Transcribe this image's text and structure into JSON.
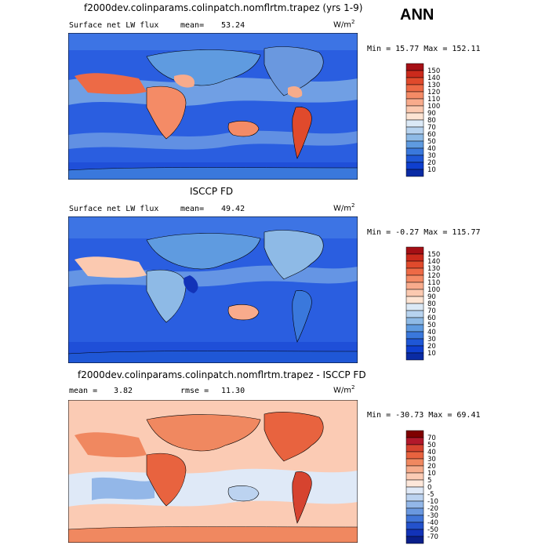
{
  "season": "ANN",
  "panels": [
    {
      "title": "f2000dev.colinparams.colinpatch.nomflrtm.trapez (yrs 1-9)",
      "variable": "Surface net LW flux",
      "stat1_label": "mean=",
      "stat1_value": "53.24",
      "stat2_label": "",
      "stat2_value": "",
      "units": "W/m",
      "units_exp": "2",
      "minmax": "Min =  15.77 Max = 152.11",
      "colorbar_levels": [
        "150",
        "140",
        "130",
        "120",
        "110",
        "100",
        "90",
        "80",
        "70",
        "60",
        "50",
        "40",
        "30",
        "20",
        "10"
      ],
      "colorbar_colors": [
        "#a50f15",
        "#cb2a1c",
        "#e04a2c",
        "#ed6a46",
        "#f48b66",
        "#f8ab8c",
        "#fbc9b0",
        "#fde4d3",
        "#dbe9f6",
        "#b7d3ef",
        "#8ebae6",
        "#5f9be0",
        "#3a78dc",
        "#1f57d6",
        "#0f3fcf",
        "#0a2ba4"
      ]
    },
    {
      "title": "ISCCP FD",
      "variable": "Surface net LW flux",
      "stat1_label": "mean=",
      "stat1_value": "49.42",
      "stat2_label": "",
      "stat2_value": "",
      "units": "W/m",
      "units_exp": "2",
      "minmax": "Min =  -0.27 Max = 115.77",
      "colorbar_levels": [
        "150",
        "140",
        "130",
        "120",
        "110",
        "100",
        "90",
        "80",
        "70",
        "60",
        "50",
        "40",
        "30",
        "20",
        "10"
      ],
      "colorbar_colors": [
        "#a50f15",
        "#cb2a1c",
        "#e04a2c",
        "#ed6a46",
        "#f48b66",
        "#f8ab8c",
        "#fbc9b0",
        "#fde4d3",
        "#dbe9f6",
        "#b7d3ef",
        "#8ebae6",
        "#5f9be0",
        "#3a78dc",
        "#1f57d6",
        "#0f3fcf",
        "#0a2ba4"
      ]
    },
    {
      "title": "f2000dev.colinparams.colinpatch.nomflrtm.trapez - ISCCP FD",
      "variable": "",
      "stat1_label": "mean =",
      "stat1_value": "3.82",
      "stat2_label": "rmse =",
      "stat2_value": "11.30",
      "units": "W/m",
      "units_exp": "2",
      "minmax": "Min = -30.73 Max =  69.41",
      "colorbar_levels": [
        "70",
        "50",
        "40",
        "30",
        "20",
        "10",
        "5",
        "0",
        "-5",
        "-10",
        "-20",
        "-30",
        "-40",
        "-50",
        "-70"
      ],
      "colorbar_colors": [
        "#7f0000",
        "#b2182b",
        "#d6432f",
        "#e8633f",
        "#f08860",
        "#f6ac8c",
        "#fbcbb4",
        "#fde7da",
        "#dfe9f7",
        "#bcd3f0",
        "#93b7e8",
        "#6a98df",
        "#4175d8",
        "#2452cc",
        "#1233b8",
        "#0a1f8a"
      ]
    }
  ]
}
